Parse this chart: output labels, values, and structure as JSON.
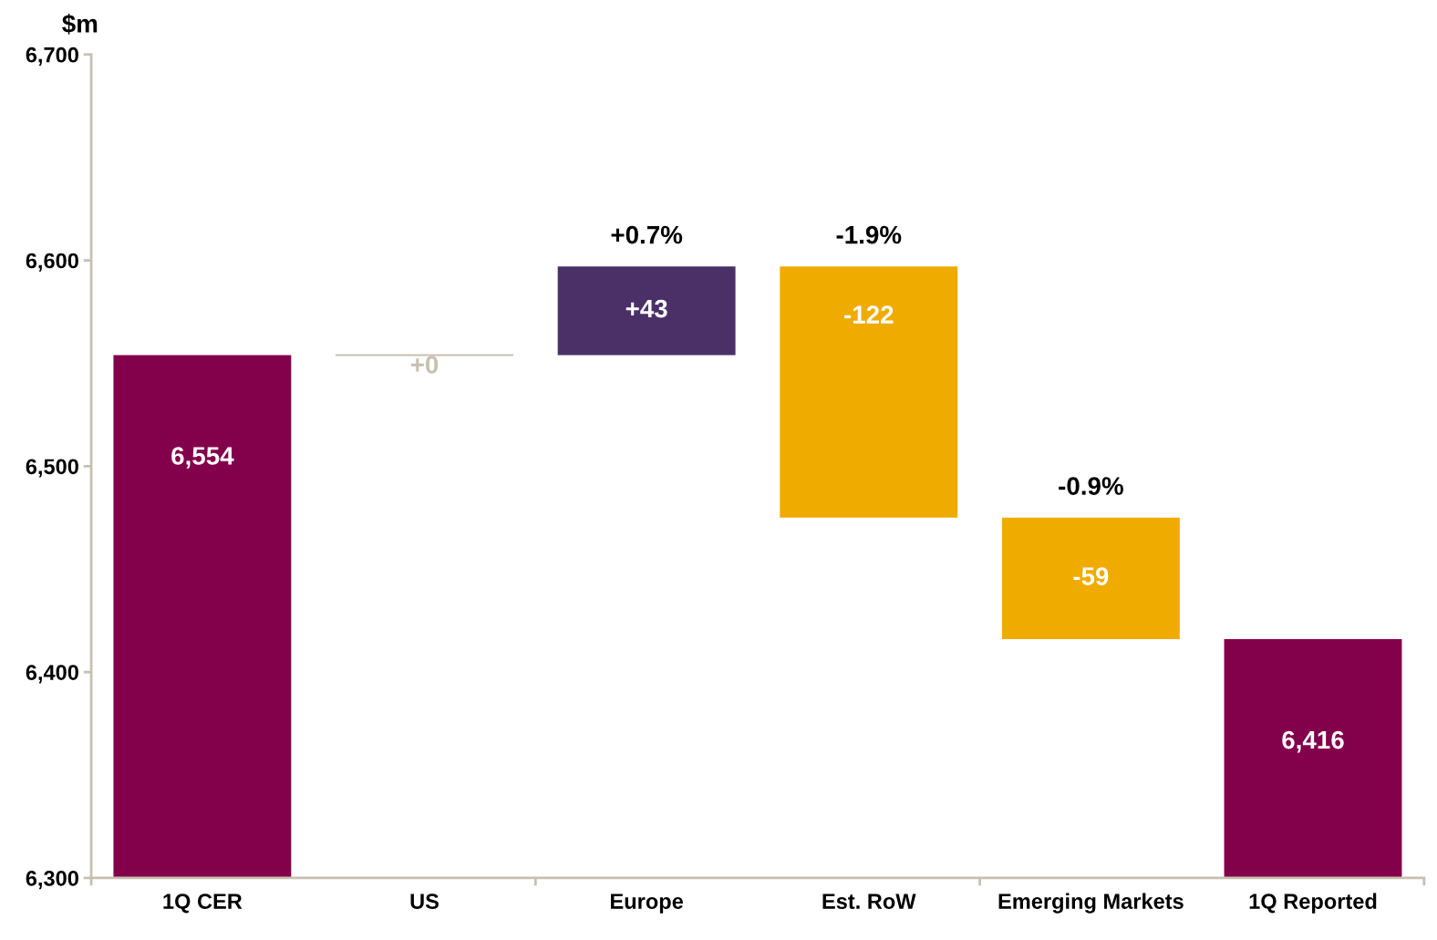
{
  "chart_data": {
    "type": "bar",
    "ylabel": "$m",
    "categories": [
      "1Q CER",
      "US",
      "Europe",
      "Est. RoW",
      "Emerging Markets",
      "1Q Reported"
    ],
    "values": [
      6554,
      0,
      43,
      -122,
      -59,
      6416
    ],
    "base": [
      null,
      6554,
      6554,
      6597,
      6475,
      null
    ],
    "colors": [
      "#83004b",
      "#c8c0b0",
      "#4b3068",
      "#f0ab00",
      "#f0ab00",
      "#83004b"
    ],
    "value_labels": [
      "6,554",
      "+0",
      "+43",
      "-122",
      "-59",
      "6,416"
    ],
    "ylim": [
      6300,
      6700
    ],
    "yticks": [
      {
        "value": 6300,
        "label": "6,300"
      },
      {
        "value": 6400,
        "label": "6,400"
      },
      {
        "value": 6500,
        "label": "6,500"
      },
      {
        "value": 6600,
        "label": "6,600"
      },
      {
        "value": 6700,
        "label": "6,700"
      }
    ],
    "annotations": [
      {
        "text": "+0.7%",
        "x": "Europe",
        "y": 6597
      },
      {
        "text": "-1.9%",
        "x": "Est. RoW",
        "y": 6597
      },
      {
        "text": "-0.9%",
        "x": "Emerging Markets",
        "y": 6475
      }
    ],
    "grid": false,
    "legend": false
  }
}
